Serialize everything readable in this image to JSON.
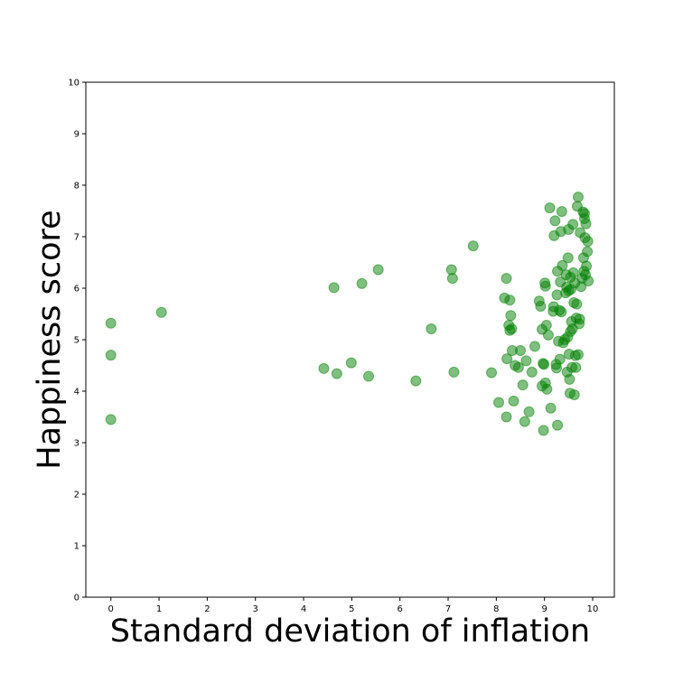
{
  "chart_data": {
    "type": "scatter",
    "title": "",
    "xlabel": "Standard deviation of inflation",
    "ylabel": "Happiness score",
    "xlim": [
      -0.52,
      10.45
    ],
    "ylim": [
      0,
      10
    ],
    "xticks": [
      "0",
      "1",
      "2",
      "3",
      "4",
      "5",
      "6",
      "7",
      "8",
      "9",
      "10"
    ],
    "yticks": [
      "0",
      "1",
      "2",
      "3",
      "4",
      "5",
      "6",
      "7",
      "8",
      "9",
      "10"
    ],
    "grid": false,
    "marker_color": "#008000",
    "marker_alpha": 0.5,
    "points": [
      [
        0.0,
        5.32
      ],
      [
        0.0,
        4.7
      ],
      [
        0.0,
        3.45
      ],
      [
        1.05,
        5.53
      ],
      [
        4.42,
        4.44
      ],
      [
        4.63,
        6.01
      ],
      [
        4.69,
        4.34
      ],
      [
        4.99,
        4.55
      ],
      [
        5.21,
        6.09
      ],
      [
        5.35,
        4.29
      ],
      [
        5.55,
        6.36
      ],
      [
        6.33,
        4.2
      ],
      [
        6.65,
        5.21
      ],
      [
        7.07,
        6.36
      ],
      [
        7.09,
        6.19
      ],
      [
        7.12,
        4.37
      ],
      [
        7.52,
        6.82
      ],
      [
        7.9,
        4.36
      ],
      [
        8.05,
        3.78
      ],
      [
        8.17,
        5.81
      ],
      [
        8.21,
        6.19
      ],
      [
        8.21,
        3.5
      ],
      [
        8.22,
        4.63
      ],
      [
        8.26,
        5.28
      ],
      [
        8.28,
        5.77
      ],
      [
        8.28,
        5.18
      ],
      [
        8.3,
        5.47
      ],
      [
        8.32,
        5.21
      ],
      [
        8.33,
        4.79
      ],
      [
        8.36,
        3.81
      ],
      [
        8.39,
        4.5
      ],
      [
        8.46,
        4.46
      ],
      [
        8.5,
        4.79
      ],
      [
        8.55,
        4.12
      ],
      [
        8.59,
        3.41
      ],
      [
        8.62,
        4.59
      ],
      [
        8.68,
        3.6
      ],
      [
        8.74,
        4.37
      ],
      [
        8.8,
        4.87
      ],
      [
        8.89,
        5.75
      ],
      [
        8.92,
        5.65
      ],
      [
        8.95,
        4.1
      ],
      [
        8.95,
        5.2
      ],
      [
        8.97,
        4.54
      ],
      [
        8.98,
        3.24
      ],
      [
        8.99,
        4.52
      ],
      [
        9.01,
        6.1
      ],
      [
        9.02,
        6.04
      ],
      [
        9.02,
        4.16
      ],
      [
        9.04,
        5.28
      ],
      [
        9.05,
        4.04
      ],
      [
        9.08,
        5.09
      ],
      [
        9.11,
        7.56
      ],
      [
        9.13,
        3.67
      ],
      [
        9.18,
        5.55
      ],
      [
        9.19,
        5.64
      ],
      [
        9.2,
        7.02
      ],
      [
        9.22,
        7.31
      ],
      [
        9.24,
        4.52
      ],
      [
        9.25,
        4.45
      ],
      [
        9.26,
        5.87
      ],
      [
        9.27,
        3.34
      ],
      [
        9.27,
        6.33
      ],
      [
        9.29,
        4.97
      ],
      [
        9.31,
        5.57
      ],
      [
        9.32,
        4.62
      ],
      [
        9.33,
        6.12
      ],
      [
        9.34,
        7.1
      ],
      [
        9.35,
        5.54
      ],
      [
        9.36,
        7.49
      ],
      [
        9.37,
        6.44
      ],
      [
        9.39,
        4.94
      ],
      [
        9.42,
        5.0
      ],
      [
        9.44,
        5.91
      ],
      [
        9.45,
        6.26
      ],
      [
        9.46,
        6.02
      ],
      [
        9.47,
        4.37
      ],
      [
        9.48,
        5.05
      ],
      [
        9.49,
        6.59
      ],
      [
        9.5,
        5.95
      ],
      [
        9.5,
        7.14
      ],
      [
        9.51,
        4.72
      ],
      [
        9.52,
        4.23
      ],
      [
        9.53,
        3.96
      ],
      [
        9.54,
        6.21
      ],
      [
        9.54,
        5.16
      ],
      [
        9.55,
        5.98
      ],
      [
        9.56,
        5.35
      ],
      [
        9.57,
        4.46
      ],
      [
        9.58,
        5.21
      ],
      [
        9.59,
        7.24
      ],
      [
        9.6,
        6.3
      ],
      [
        9.61,
        5.72
      ],
      [
        9.62,
        3.93
      ],
      [
        9.63,
        6.1
      ],
      [
        9.64,
        4.69
      ],
      [
        9.65,
        4.46
      ],
      [
        9.66,
        5.42
      ],
      [
        9.67,
        5.69
      ],
      [
        9.68,
        7.59
      ],
      [
        9.7,
        7.77
      ],
      [
        9.7,
        4.71
      ],
      [
        9.72,
        5.31
      ],
      [
        9.73,
        5.4
      ],
      [
        9.74,
        7.08
      ],
      [
        9.76,
        6.03
      ],
      [
        9.78,
        6.19
      ],
      [
        9.8,
        7.48
      ],
      [
        9.81,
        6.59
      ],
      [
        9.82,
        6.33
      ],
      [
        9.83,
        7.45
      ],
      [
        9.83,
        7.35
      ],
      [
        9.84,
        6.98
      ],
      [
        9.85,
        6.26
      ],
      [
        9.86,
        7.25
      ],
      [
        9.87,
        6.43
      ],
      [
        9.89,
        6.71
      ],
      [
        9.9,
        6.91
      ],
      [
        9.91,
        6.14
      ]
    ]
  }
}
